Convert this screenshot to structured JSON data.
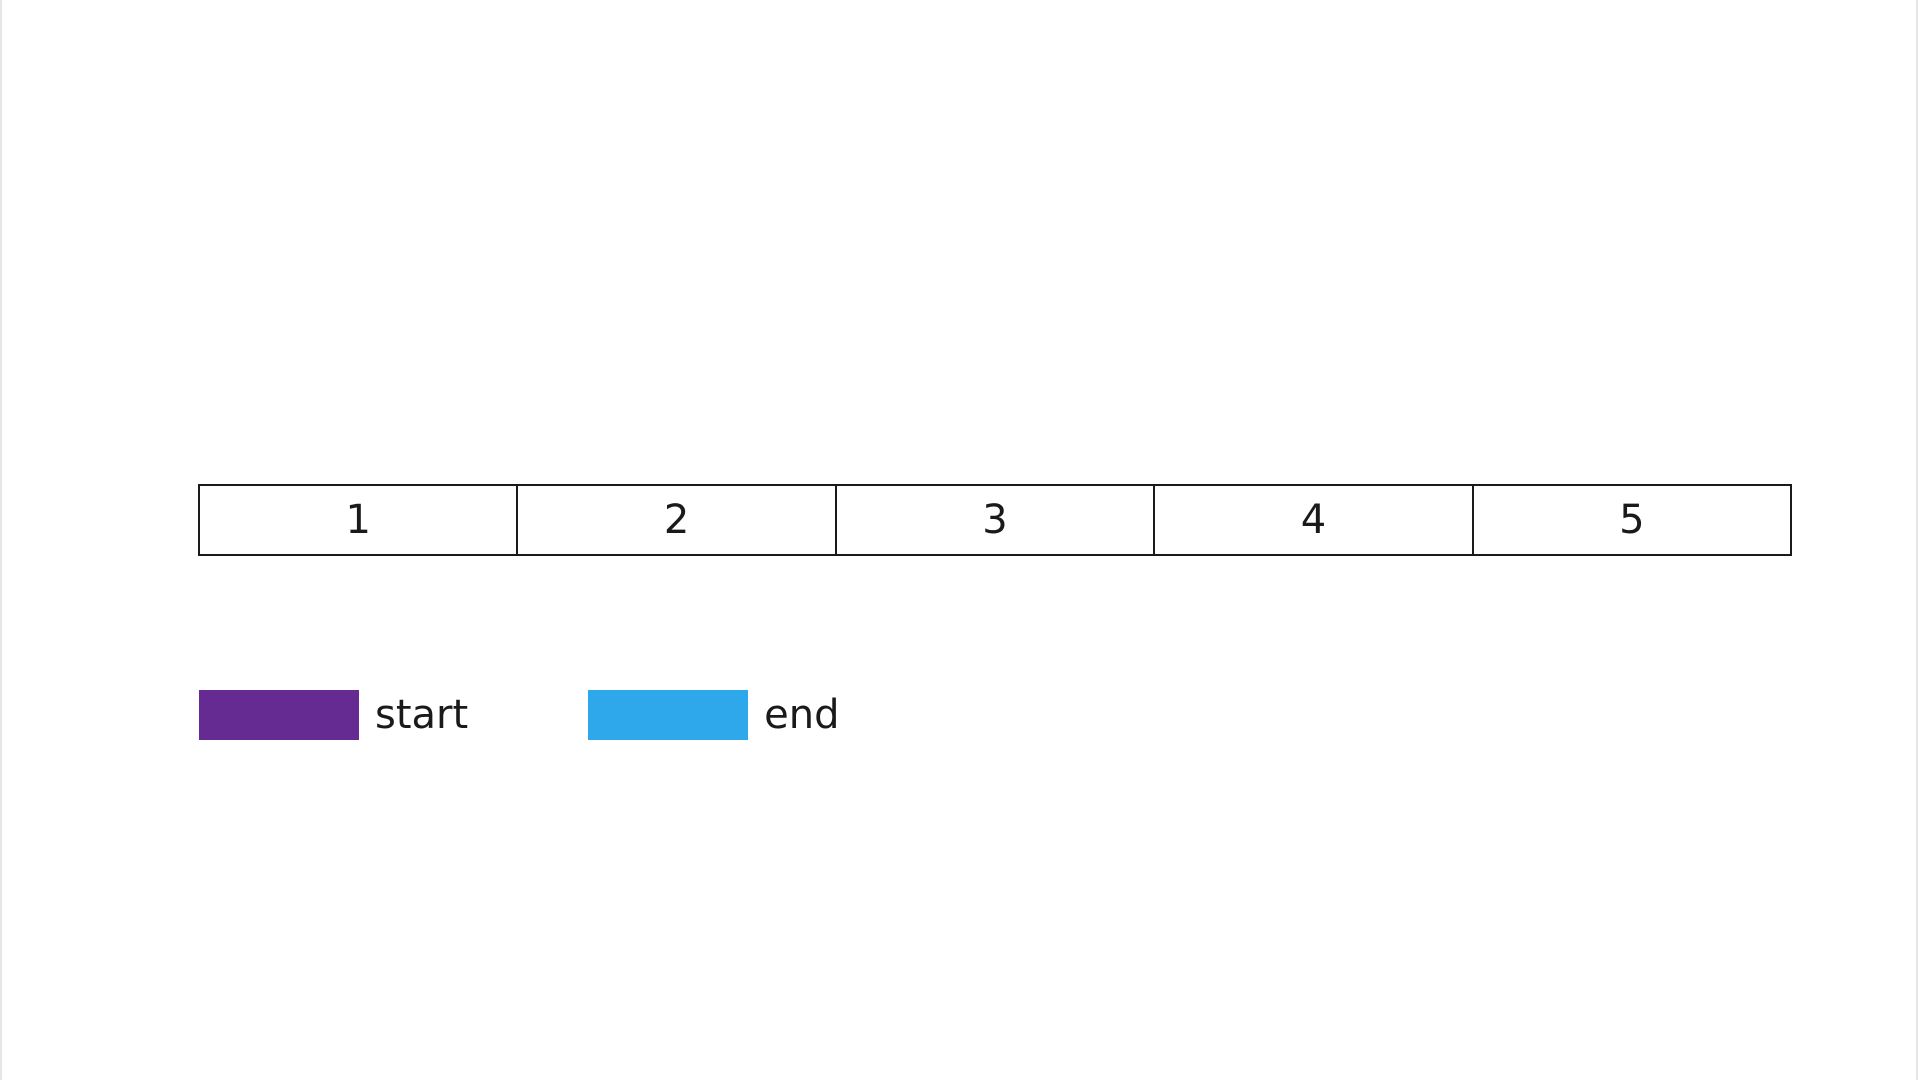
{
  "cells": [
    "1",
    "2",
    "3",
    "4",
    "5"
  ],
  "legend": [
    {
      "label": "start",
      "color": "#662a93"
    },
    {
      "label": "end",
      "color": "#2fa8eb"
    }
  ]
}
